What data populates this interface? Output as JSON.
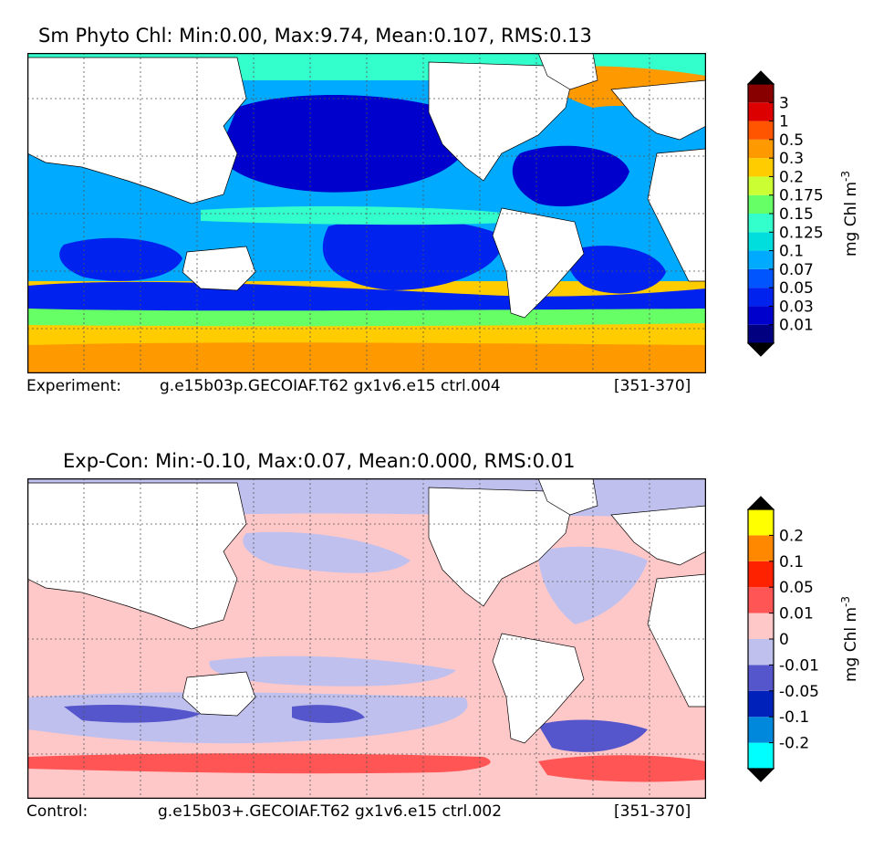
{
  "panels": [
    {
      "title": "Sm Phyto Chl: Min:0.00, Max:9.74, Mean:0.107, RMS:0.13",
      "caption_label": "Experiment:",
      "caption_case": "g.e15b03p.GECOIAF.T62 gx1v6.e15 ctrl.004",
      "caption_years": "[351-370]",
      "colorbar": {
        "unit_base": "mg Chl m",
        "unit_exp": "-3",
        "levels": [
          "0.01",
          "0.03",
          "0.05",
          "0.07",
          "0.1",
          "0.125",
          "0.15",
          "0.175",
          "0.2",
          "0.3",
          "0.5",
          "1",
          "3"
        ],
        "colors": [
          "#000080",
          "#0000cc",
          "#0022ee",
          "#0055ff",
          "#00aaff",
          "#00dddd",
          "#33ffcc",
          "#66ff66",
          "#ccff33",
          "#ffcc00",
          "#ff9900",
          "#ff5500",
          "#dd0000",
          "#880000"
        ],
        "under_color": "#000000",
        "over_color": "#000000"
      }
    },
    {
      "title": "Exp-Con: Min:-0.10, Max:0.07, Mean:0.000, RMS:0.01",
      "caption_label": "Control:",
      "caption_case": "g.e15b03+.GECOIAF.T62 gx1v6.e15 ctrl.002",
      "caption_years": "[351-370]",
      "colorbar": {
        "unit_base": "mg Chl m",
        "unit_exp": "-3",
        "levels": [
          "-0.2",
          "-0.1",
          "-0.05",
          "-0.01",
          "0",
          "0.01",
          "0.05",
          "0.1",
          "0.2"
        ],
        "colors": [
          "#00ffff",
          "#0088dd",
          "#0022bb",
          "#5555cc",
          "#c0c0ee",
          "#ffc8c8",
          "#ff5555",
          "#ff2200",
          "#ff8800",
          "#ffff00"
        ],
        "under_color": "#000000",
        "over_color": "#000000"
      }
    }
  ],
  "chart_data": [
    {
      "type": "heatmap",
      "title": "Sm Phyto Chl: Min:0.00, Max:9.74, Mean:0.107, RMS:0.13",
      "variable": "Sm Phyto Chl",
      "stats": {
        "min": 0.0,
        "max": 9.74,
        "mean": 0.107,
        "rms": 0.13
      },
      "contour_levels": [
        0.01,
        0.03,
        0.05,
        0.07,
        0.1,
        0.125,
        0.15,
        0.175,
        0.2,
        0.3,
        0.5,
        1,
        3
      ],
      "unit": "mg Chl m-3"
    },
    {
      "type": "heatmap",
      "title": "Exp-Con: Min:-0.10, Max:0.07, Mean:0.000, RMS:0.01",
      "variable": "Exp-Con",
      "stats": {
        "min": -0.1,
        "max": 0.07,
        "mean": 0.0,
        "rms": 0.01
      },
      "contour_levels": [
        -0.2,
        -0.1,
        -0.05,
        -0.01,
        0,
        0.01,
        0.05,
        0.1,
        0.2
      ],
      "unit": "mg Chl m-3"
    }
  ]
}
